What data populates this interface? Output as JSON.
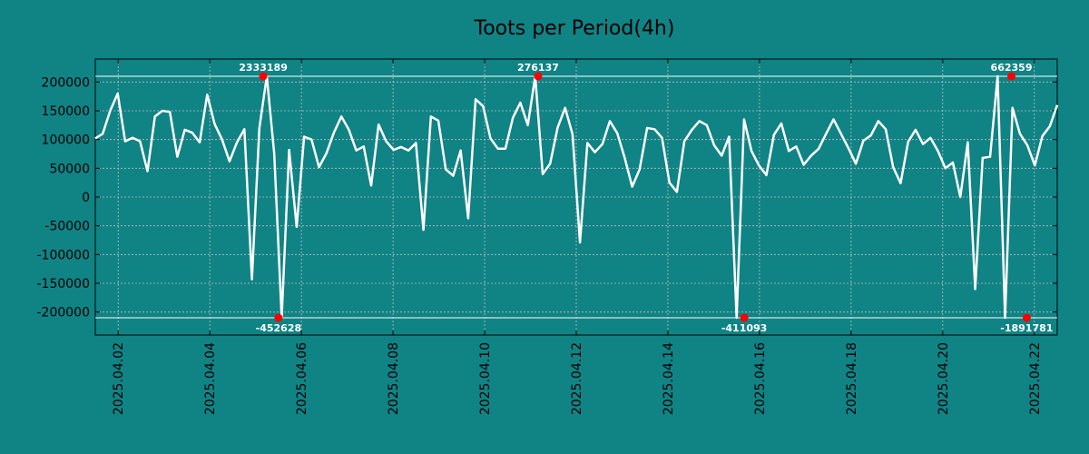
{
  "chart_data": {
    "type": "line",
    "title": "Toots per Period(4h)",
    "xlabel": "",
    "ylabel": "",
    "ylim": [
      -240000,
      240000
    ],
    "grid": true,
    "clip_limits": [
      210000,
      -210000
    ],
    "x_start": "2025-04-01T12:00",
    "x_end": "2025-04-22T12:00",
    "x_ticks": [
      "2025.04.02",
      "2025.04.04",
      "2025.04.06",
      "2025.04.08",
      "2025.04.10",
      "2025.04.12",
      "2025.04.14",
      "2025.04.16",
      "2025.04.18",
      "2025.04.20",
      "2025.04.22"
    ],
    "y_ticks": [
      200000,
      150000,
      100000,
      50000,
      0,
      -50000,
      -100000,
      -150000,
      -200000
    ],
    "y_tick_labels": [
      "200000",
      "150000",
      "100000",
      "50000",
      "0",
      "-50000",
      "-100000",
      "-150000",
      "-200000"
    ],
    "series": [
      {
        "values": [
          102000,
          110000,
          150000,
          180000,
          97000,
          103000,
          97000,
          45000,
          140000,
          150000,
          148000,
          70000,
          117000,
          112000,
          95000,
          178000,
          127000,
          100000,
          62000,
          95000,
          118000,
          -143000,
          120000,
          210000,
          75000,
          -210000,
          82000,
          -52000,
          105000,
          100000,
          52000,
          76000,
          112000,
          140000,
          117000,
          81000,
          88000,
          20000,
          126000,
          97000,
          82000,
          87000,
          81000,
          94000,
          -57000,
          140000,
          133000,
          48000,
          37000,
          81000,
          -37000,
          170000,
          158000,
          102000,
          84000,
          84000,
          138000,
          164000,
          125000,
          210000,
          40000,
          58000,
          121000,
          155000,
          109000,
          -79000,
          94000,
          78000,
          92000,
          132000,
          111000,
          68000,
          18000,
          48000,
          120000,
          118000,
          103000,
          25000,
          9000,
          97000,
          117000,
          132000,
          125000,
          90000,
          72000,
          105000,
          -210000,
          135000,
          80000,
          55000,
          38000,
          108000,
          128000,
          80000,
          88000,
          56000,
          72000,
          84000,
          110000,
          135000,
          110000,
          85000,
          58000,
          98000,
          107000,
          132000,
          118000,
          52000,
          24000,
          96000,
          117000,
          92000,
          103000,
          80000,
          50000,
          60000,
          0,
          95000,
          -160000,
          68000,
          70000,
          210000,
          -210000,
          155000,
          110000,
          90000,
          55000,
          106000,
          123000,
          160000
        ]
      }
    ],
    "annotations": [
      {
        "text": "2333189",
        "x": "2025-04-05T04:00",
        "y": 210000,
        "pos": "above"
      },
      {
        "text": "276137",
        "x": "2025-04-11T04:00",
        "y": 210000,
        "pos": "above"
      },
      {
        "text": "662359",
        "x": "2025-04-21T12:00",
        "y": 210000,
        "pos": "above"
      },
      {
        "text": "-452628",
        "x": "2025-04-05T12:00",
        "y": -210000,
        "pos": "below"
      },
      {
        "text": "-411093",
        "x": "2025-04-15T16:00",
        "y": -210000,
        "pos": "below"
      },
      {
        "text": "-1891781",
        "x": "2025-04-21T20:00",
        "y": -210000,
        "pos": "below"
      }
    ],
    "colors": {
      "background": "#108385",
      "line": "#ffffff",
      "marker": "#ff0000",
      "grid": "#bdbdbd"
    }
  }
}
